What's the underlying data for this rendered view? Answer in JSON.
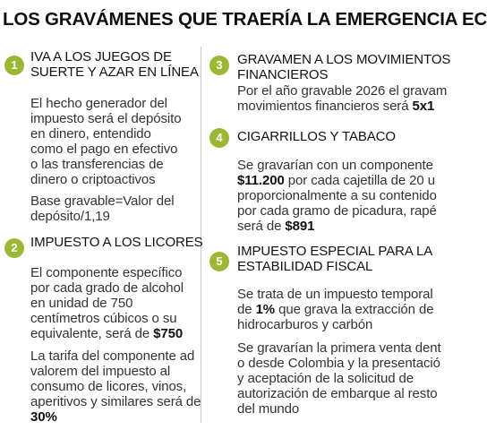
{
  "title": "LOS GRAVÁMENES QUE TRAERÍA LA EMERGENCIA EC",
  "colors": {
    "badge": "#9bb833",
    "text": "#333333",
    "heading": "#111111",
    "divider": "#c9c9c9"
  },
  "items": [
    {
      "number": "1",
      "heading": [
        "IVA A LOS JUEGOS DE",
        "SUERTE Y AZAR EN LÍNEA"
      ],
      "paragraphs": [
        [
          "El hecho generador del",
          "impuesto será el depósito",
          "en dinero, entendido",
          "como el pago en efectivo",
          "o las transferencias de",
          "dinero o criptoactivos"
        ],
        [
          "Base gravable=Valor del",
          "depósito/1,19"
        ]
      ]
    },
    {
      "number": "2",
      "heading": [
        "IMPUESTO A LOS LICORES"
      ],
      "p1_lines": [
        "El componente específico",
        "por cada grado de alcohol",
        "en unidad de 750",
        "centímetros cúbicos o su"
      ],
      "p1_last_pre": "equivalente, será de ",
      "p1_last_bold": "$750",
      "p2_lines": [
        "La tarifa del componente ad",
        "valorem del impuesto al",
        "consumo de licores, vinos,",
        "aperitivos y similares será de"
      ],
      "p2_last_bold": "30%"
    },
    {
      "number": "3",
      "heading": [
        "GRAVAMEN A LOS MOVIMIENTOS",
        "FINANCIEROS"
      ],
      "p1_line": "Por el año gravable 2026 el gravam",
      "p2_pre": "movimientos financieros será ",
      "p2_bold": "5x1"
    },
    {
      "number": "4",
      "heading": [
        "CIGARRILLOS Y TABACO"
      ],
      "l1": "Se gravarían con un componente",
      "l2_bold": "$11.200",
      "l2_post": " por cada cajetilla de 20 u",
      "l3": "proporcionalmente a su contenido",
      "l4": "por cada gramo de picadura, rapé",
      "l5_pre": "será de ",
      "l5_bold": "$891"
    },
    {
      "number": "5",
      "heading": [
        "IMPUESTO ESPECIAL PARA LA",
        "ESTABILIDAD FISCAL"
      ],
      "p1_l1": "Se trata de un impuesto temporal",
      "p1_l2_pre": "de ",
      "p1_l2_bold": "1%",
      "p1_l2_post": " que grava la extracción de",
      "p1_l3": "hidrocarburos y carbón",
      "p2_lines": [
        "Se gravarían la primera venta dent",
        "o desde Colombia y la presentació",
        "y aceptación de la solicitud de",
        "autorización de embarque al resto",
        "del mundo"
      ]
    }
  ]
}
